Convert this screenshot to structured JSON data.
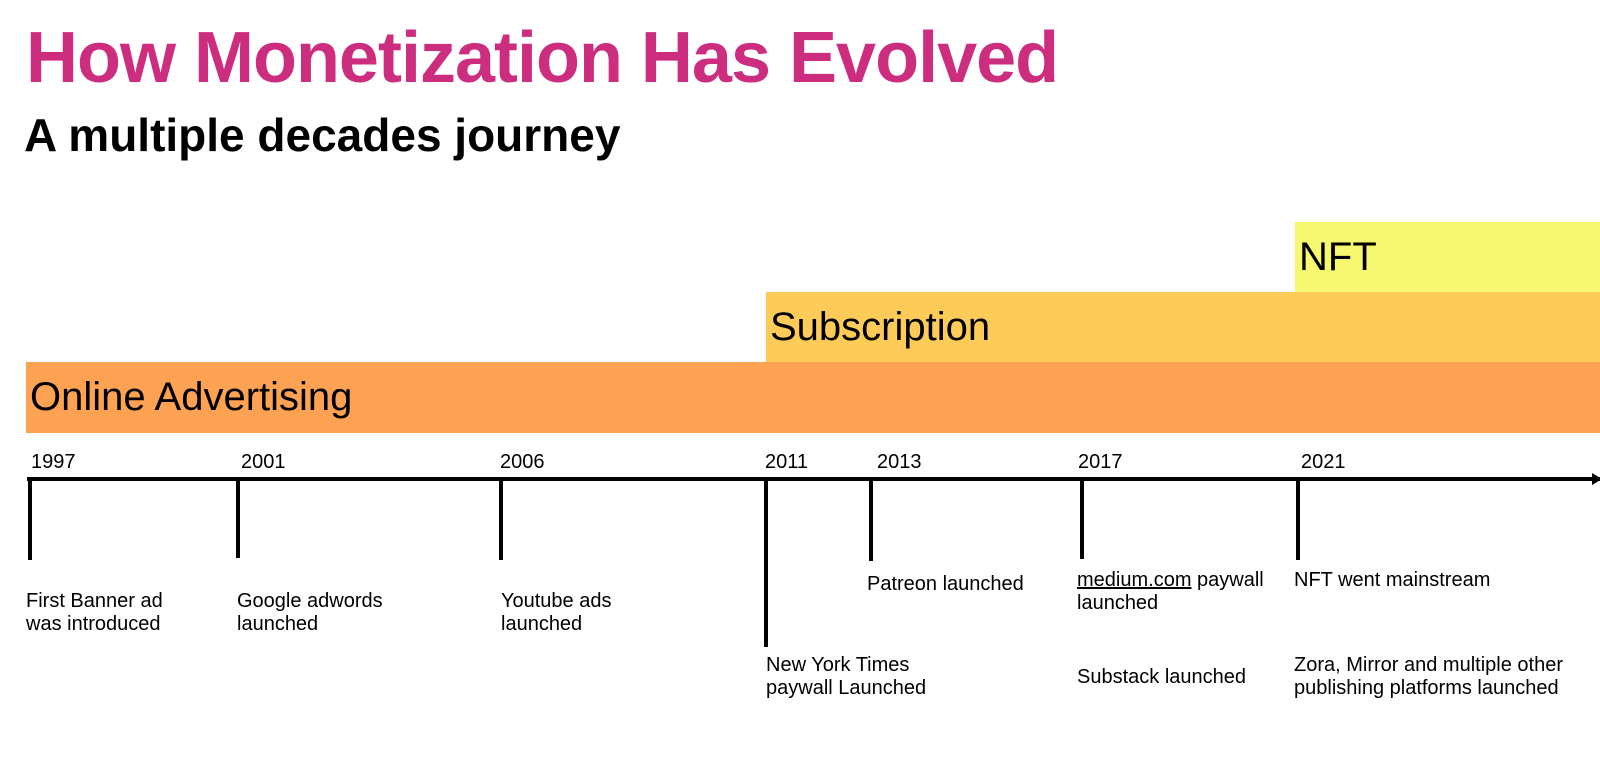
{
  "header": {
    "title": "How Monetization Has Evolved",
    "subtitle": "A multiple decades journey"
  },
  "colors": {
    "title": "#cc2d7e",
    "nft_band": "#f6f870",
    "subscription_band": "#fecb58",
    "advertising_band": "#fda252",
    "axis": "#000000"
  },
  "bands": {
    "nft": "NFT",
    "subscription": "Subscription",
    "advertising": "Online Advertising"
  },
  "years": [
    "1997",
    "2001",
    "2006",
    "2011",
    "2013",
    "2017",
    "2021"
  ],
  "events": {
    "banner_ad": [
      "First Banner ad",
      "was introduced"
    ],
    "adwords": [
      "Google adwords",
      "launched"
    ],
    "youtube": [
      "Youtube ads",
      "launched"
    ],
    "nyt": [
      "New York Times",
      "paywall Launched"
    ],
    "patreon": [
      "Patreon launched"
    ],
    "medium": {
      "link": "medium.com",
      "rest": " paywall",
      "line2": "launched"
    },
    "substack": [
      "Substack launched"
    ],
    "nft_mainstream": [
      "NFT went mainstream"
    ],
    "zora": [
      "Zora, Mirror and multiple other",
      "publishing platforms launched"
    ]
  }
}
